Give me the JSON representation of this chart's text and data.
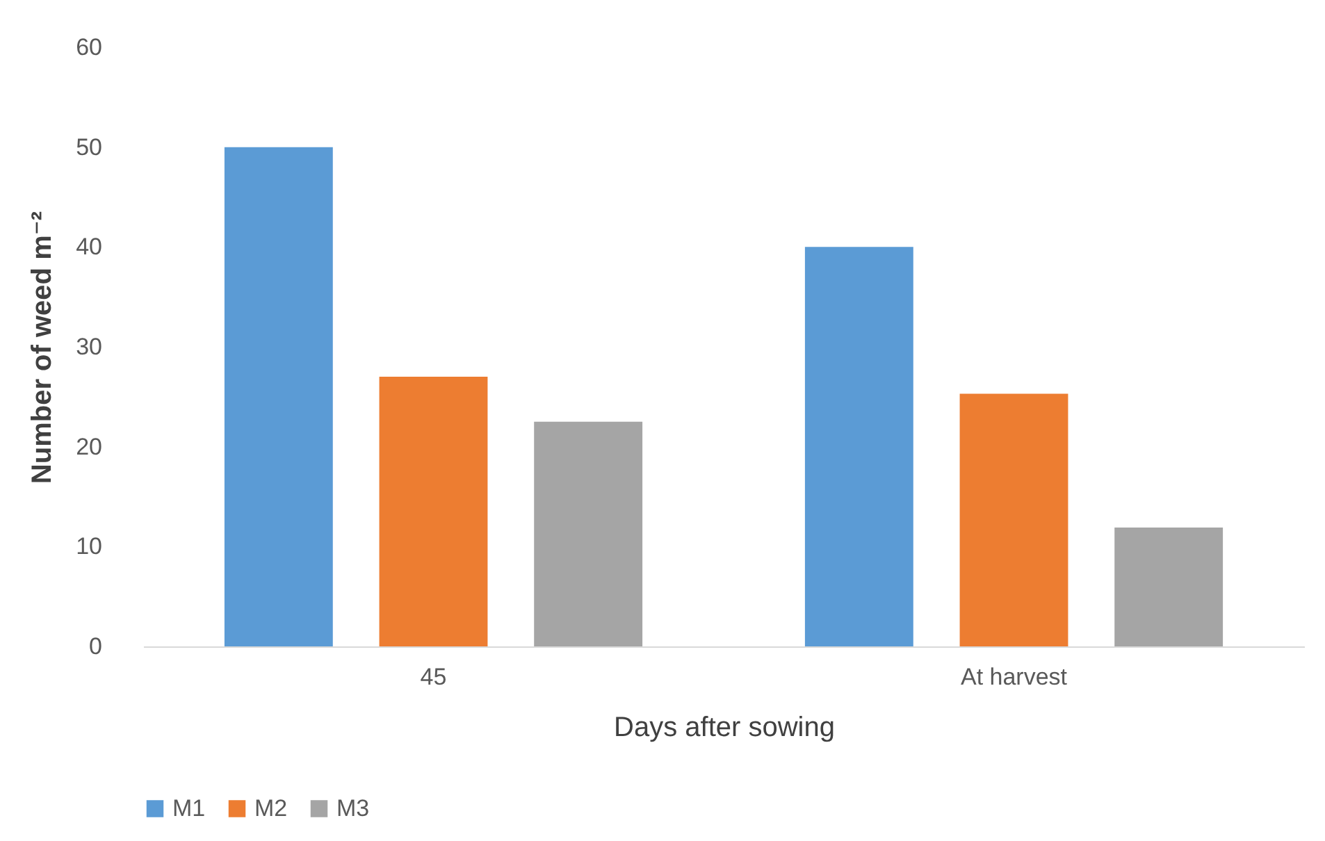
{
  "chart_data": {
    "type": "bar",
    "xlabel": "Days after sowing",
    "ylabel": "Number of weed m⁻²",
    "categories": [
      "45",
      "At harvest"
    ],
    "series": [
      {
        "name": "M1",
        "color": "#5b9bd5",
        "values": [
          50,
          40
        ]
      },
      {
        "name": "M2",
        "color": "#ed7d31",
        "values": [
          27,
          25.3
        ]
      },
      {
        "name": "M3",
        "color": "#a5a5a5",
        "values": [
          22.5,
          11.9
        ]
      }
    ],
    "ylim": [
      0,
      60
    ],
    "yticks": [
      0,
      10,
      20,
      30,
      40,
      50,
      60
    ],
    "grid": false,
    "legend": "bottom"
  }
}
